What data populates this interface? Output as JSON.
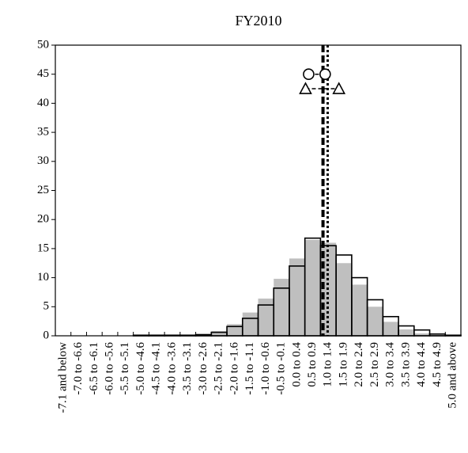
{
  "chart_data": {
    "type": "histogram",
    "title": "FY2010",
    "categories": [
      "-7.1 and below",
      "-7.0 to -6.6",
      "-6.5 to -6.1",
      "-6.0 to -5.6",
      "-5.5 to -5.1",
      "-5.0 to -4.6",
      "-4.5 to -4.1",
      "-4.0 to -3.6",
      "-3.5 to -3.1",
      "-3.0 to -2.6",
      "-2.5 to -2.1",
      "-2.0 to -1.6",
      "-1.5 to -1.1",
      "-1.0 to -0.6",
      "-0.5 to -0.1",
      "0.0 to 0.4",
      "0.5 to 0.9",
      "1.0 to 1.4",
      "1.5 to 1.9",
      "2.0 to 2.4",
      "2.5 to 2.9",
      "3.0 to 3.4",
      "3.5 to 3.9",
      "4.0 to 4.4",
      "4.5 to 4.9",
      "5.0 and above"
    ],
    "series": [
      {
        "style": "filled",
        "color": "#bfbfbf",
        "values": [
          0,
          0,
          0,
          0,
          0,
          0.1,
          0.1,
          0.1,
          0.2,
          0.3,
          0.8,
          2.0,
          4.0,
          6.4,
          9.8,
          13.3,
          16.5,
          16.0,
          12.5,
          8.8,
          5.0,
          2.4,
          1.1,
          0.4,
          0.1,
          0
        ]
      },
      {
        "style": "outline",
        "color": "#000000",
        "values": [
          0,
          0,
          0,
          0,
          0,
          0.1,
          0.1,
          0.1,
          0.1,
          0.2,
          0.6,
          1.6,
          3.0,
          5.3,
          8.2,
          12.0,
          16.8,
          15.5,
          13.9,
          10.0,
          6.2,
          3.3,
          1.7,
          1.0,
          0.3,
          0.1
        ]
      }
    ],
    "markers": [
      {
        "shape": "circle",
        "x": [
          0.62,
          1.15
        ],
        "y": [
          45,
          45
        ]
      },
      {
        "shape": "triangle",
        "x": [
          0.52,
          1.59
        ],
        "y": [
          42.5,
          42.5
        ]
      }
    ],
    "vlines": [
      {
        "style": "dashed",
        "x": 1.08
      },
      {
        "style": "dotted",
        "x": 1.23
      }
    ],
    "ylim": [
      0,
      50
    ],
    "yticks": [
      0,
      5,
      10,
      15,
      20,
      25,
      30,
      35,
      40,
      45,
      50
    ]
  }
}
